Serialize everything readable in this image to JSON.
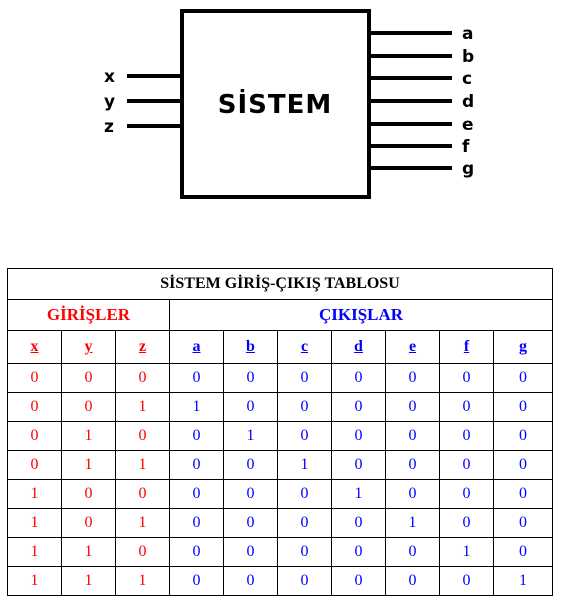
{
  "diagram": {
    "system_label": "SİSTEM",
    "inputs": [
      "x",
      "y",
      "z"
    ],
    "outputs": [
      "a",
      "b",
      "c",
      "d",
      "e",
      "f",
      "g"
    ]
  },
  "table": {
    "title": "SİSTEM GİRİŞ-ÇIKIŞ TABLOSU",
    "inputs_header": "GİRİŞLER",
    "outputs_header": "ÇIKIŞLAR",
    "input_columns": [
      "x",
      "y",
      "z"
    ],
    "output_columns": [
      "a",
      "b",
      "c",
      "d",
      "e",
      "f",
      "g"
    ],
    "rows": [
      {
        "in": [
          "0",
          "0",
          "0"
        ],
        "out": [
          "0",
          "0",
          "0",
          "0",
          "0",
          "0",
          "0"
        ]
      },
      {
        "in": [
          "0",
          "0",
          "1"
        ],
        "out": [
          "1",
          "0",
          "0",
          "0",
          "0",
          "0",
          "0"
        ]
      },
      {
        "in": [
          "0",
          "1",
          "0"
        ],
        "out": [
          "0",
          "1",
          "0",
          "0",
          "0",
          "0",
          "0"
        ]
      },
      {
        "in": [
          "0",
          "1",
          "1"
        ],
        "out": [
          "0",
          "0",
          "1",
          "0",
          "0",
          "0",
          "0"
        ]
      },
      {
        "in": [
          "1",
          "0",
          "0"
        ],
        "out": [
          "0",
          "0",
          "0",
          "1",
          "0",
          "0",
          "0"
        ]
      },
      {
        "in": [
          "1",
          "0",
          "1"
        ],
        "out": [
          "0",
          "0",
          "0",
          "0",
          "1",
          "0",
          "0"
        ]
      },
      {
        "in": [
          "1",
          "1",
          "0"
        ],
        "out": [
          "0",
          "0",
          "0",
          "0",
          "0",
          "1",
          "0"
        ]
      },
      {
        "in": [
          "1",
          "1",
          "1"
        ],
        "out": [
          "0",
          "0",
          "0",
          "0",
          "0",
          "0",
          "1"
        ]
      }
    ]
  },
  "colors": {
    "inputs": "#ff0000",
    "outputs": "#0000ff",
    "title": "#000000"
  }
}
